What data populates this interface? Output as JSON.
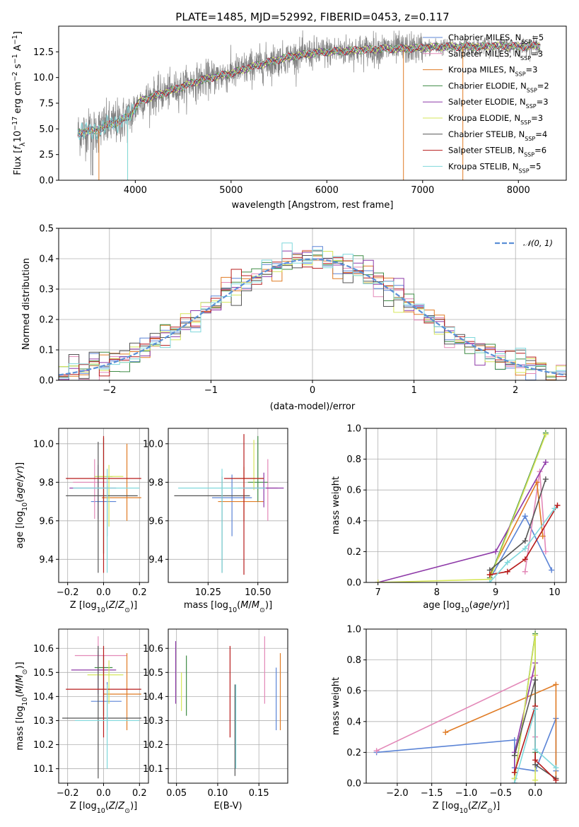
{
  "colors": {
    "Chabrier MILES": "#5b84d6",
    "Salpeter MILES": "#e388b8",
    "Kroupa MILES": "#e07b24",
    "Chabrier ELODIE": "#3f8b45",
    "Salpeter ELODIE": "#8e3aa8",
    "Kroupa ELODIE": "#d6e65a",
    "Chabrier STELIB": "#555555",
    "Salpeter STELIB": "#b71c1c",
    "Kroupa STELIB": "#7fd8dc",
    "data": "#808080",
    "normal": "#5b8fd6"
  },
  "chart_data": [
    {
      "id": "spectrum",
      "type": "line",
      "title": "PLATE=1485, MJD=52992, FIBERID=0453, z=0.117",
      "xlabel": "wavelength [Angstrom, rest frame]",
      "ylabel": "Flux [f_λ10^-17 erg cm^-2 s^-1 A^-1]",
      "xlim": [
        3200,
        8500
      ],
      "ylim": [
        0,
        15
      ],
      "xticks": [
        4000,
        5000,
        6000,
        7000,
        8000
      ],
      "yticks": [
        0.0,
        2.5,
        5.0,
        7.5,
        10.0,
        12.5
      ],
      "legend_position": "upper right",
      "legend": [
        {
          "model": "Chabrier MILES",
          "label": "Chabrier MILES, N",
          "nssp": "=5"
        },
        {
          "model": "Salpeter MILES",
          "label": "Salpeter MILES, N",
          "nssp": "=3"
        },
        {
          "model": "Kroupa MILES",
          "label": "Kroupa MILES, N",
          "nssp": "=3"
        },
        {
          "model": "Chabrier ELODIE",
          "label": "Chabrier ELODIE, N",
          "nssp": "=2"
        },
        {
          "model": "Salpeter ELODIE",
          "label": "Salpeter ELODIE, N",
          "nssp": "=3"
        },
        {
          "model": "Kroupa ELODIE",
          "label": "Kroupa ELODIE, N",
          "nssp": "=3"
        },
        {
          "model": "Chabrier STELIB",
          "label": "Chabrier STELIB, N",
          "nssp": "=4"
        },
        {
          "model": "Salpeter STELIB",
          "label": "Salpeter STELIB, N",
          "nssp": "=6"
        },
        {
          "model": "Kroupa STELIB",
          "label": "Kroupa STELIB, N",
          "nssp": "=5"
        }
      ],
      "nssp_subscript": "SSP",
      "continuum": [
        [
          3400,
          4.6
        ],
        [
          3600,
          4.9
        ],
        [
          3700,
          5.3
        ],
        [
          3800,
          5.6
        ],
        [
          3950,
          6.3
        ],
        [
          4050,
          7.7
        ],
        [
          4200,
          8.2
        ],
        [
          4400,
          8.8
        ],
        [
          4600,
          9.5
        ],
        [
          4800,
          10.0
        ],
        [
          5000,
          10.4
        ],
        [
          5200,
          11.0
        ],
        [
          5400,
          11.5
        ],
        [
          5600,
          12.0
        ],
        [
          5800,
          12.3
        ],
        [
          6000,
          12.5
        ],
        [
          6200,
          12.6
        ],
        [
          6400,
          12.7
        ],
        [
          6600,
          12.8
        ],
        [
          6800,
          12.8
        ],
        [
          7000,
          12.9
        ],
        [
          7200,
          13.0
        ],
        [
          7400,
          13.0
        ],
        [
          7600,
          13.0
        ],
        [
          7800,
          13.1
        ],
        [
          8000,
          13.0
        ],
        [
          8230,
          13.1
        ]
      ]
    },
    {
      "id": "residuals",
      "type": "histogram",
      "xlabel": "(data-model)/error",
      "ylabel": "Normed distribution",
      "xlim": [
        -2.5,
        2.5
      ],
      "ylim": [
        0,
        0.5
      ],
      "xticks": [
        -2,
        -1,
        0,
        1,
        2
      ],
      "yticks": [
        0.0,
        0.1,
        0.2,
        0.3,
        0.4,
        0.5
      ],
      "legend": "𝒩(0, 1)",
      "legend_position": "upper right",
      "bin_width": 0.1
    },
    {
      "id": "age-vs-z",
      "type": "scatter",
      "xlabel": "Z [log10(Z/Z⊙)]",
      "ylabel": "age [log10(age/yr)]",
      "xlim": [
        -0.25,
        0.25
      ],
      "ylim": [
        9.28,
        10.08
      ],
      "xticks": [
        -0.2,
        0.0,
        0.2
      ],
      "yticks": [
        9.4,
        9.6,
        9.8,
        10.0
      ],
      "points": [
        {
          "model": "Chabrier MILES",
          "x": 0.02,
          "xerr": [
            0.09,
            0.05
          ],
          "y": 9.7,
          "yerr": [
            0.18,
            0.08
          ]
        },
        {
          "model": "Salpeter MILES",
          "x": -0.05,
          "xerr": [
            0.12,
            0.08
          ],
          "y": 9.8,
          "yerr": [
            0.19,
            0.12
          ]
        },
        {
          "model": "Kroupa MILES",
          "x": 0.13,
          "xerr": [
            0.14,
            0.08
          ],
          "y": 9.72,
          "yerr": [
            0.12,
            0.28
          ]
        },
        {
          "model": "Chabrier ELODIE",
          "x": 0.0,
          "xerr": [
            0.05,
            0.05
          ],
          "y": 9.83,
          "yerr": [
            0.4,
            0.2
          ]
        },
        {
          "model": "Salpeter ELODIE",
          "x": -0.03,
          "xerr": [
            0.16,
            0.1
          ],
          "y": 9.77,
          "yerr": [
            0.16,
            0.12
          ]
        },
        {
          "model": "Kroupa ELODIE",
          "x": 0.03,
          "xerr": [
            0.08,
            0.08
          ],
          "y": 9.83,
          "yerr": [
            0.26,
            0.06
          ]
        },
        {
          "model": "Chabrier STELIB",
          "x": -0.03,
          "xerr": [
            0.18,
            0.22
          ],
          "y": 9.73,
          "yerr": [
            0.4,
            0.28
          ]
        },
        {
          "model": "Salpeter STELIB",
          "x": 0.0,
          "xerr": [
            0.21,
            0.21
          ],
          "y": 9.82,
          "yerr": [
            0.49,
            0.22
          ]
        },
        {
          "model": "Kroupa STELIB",
          "x": 0.02,
          "xerr": [
            0.19,
            0.18
          ],
          "y": 9.77,
          "yerr": [
            0.44,
            0.1
          ]
        }
      ]
    },
    {
      "id": "age-vs-mass",
      "type": "scatter",
      "xlabel": "mass [log10(M/M⊙)]",
      "ylabel": "",
      "xlim": [
        10.05,
        10.65
      ],
      "ylim": [
        9.28,
        10.08
      ],
      "xticks": [
        10.25,
        10.5
      ],
      "yticks": [
        9.4,
        9.6,
        9.8,
        10.0
      ],
      "points": [
        {
          "model": "Chabrier MILES",
          "x": 10.37,
          "xerr": [
            0.1,
            0.1
          ],
          "y": 9.72,
          "yerr": [
            0.2,
            0.12
          ]
        },
        {
          "model": "Salpeter MILES",
          "x": 10.55,
          "xerr": [
            0.15,
            0.05
          ],
          "y": 9.77,
          "yerr": [
            0.17,
            0.15
          ]
        },
        {
          "model": "Kroupa MILES",
          "x": 10.43,
          "xerr": [
            0.13,
            0.1
          ],
          "y": 9.7,
          "yerr": [
            0.1,
            0.18
          ]
        },
        {
          "model": "Chabrier ELODIE",
          "x": 10.5,
          "xerr": [
            0.05,
            0.05
          ],
          "y": 9.8,
          "yerr": [
            0.1,
            0.24
          ]
        },
        {
          "model": "Salpeter ELODIE",
          "x": 10.53,
          "xerr": [
            0.1,
            0.1
          ],
          "y": 9.77,
          "yerr": [
            0.1,
            0.08
          ]
        },
        {
          "model": "Kroupa ELODIE",
          "x": 10.48,
          "xerr": [
            0.1,
            0.05
          ],
          "y": 9.82,
          "yerr": [
            0.06,
            0.2
          ]
        },
        {
          "model": "Chabrier STELIB",
          "x": 10.32,
          "xerr": [
            0.24,
            0.14
          ],
          "y": 9.73,
          "yerr": [
            0.4,
            0.1
          ]
        },
        {
          "model": "Salpeter STELIB",
          "x": 10.43,
          "xerr": [
            0.1,
            0.1
          ],
          "y": 9.82,
          "yerr": [
            0.5,
            0.23
          ]
        },
        {
          "model": "Kroupa STELIB",
          "x": 10.32,
          "xerr": [
            0.22,
            0.22
          ],
          "y": 9.77,
          "yerr": [
            0.44,
            0.1
          ]
        }
      ]
    },
    {
      "id": "weight-vs-age",
      "type": "line",
      "xlabel": "age [log10(age/yr)]",
      "ylabel": "mass weight",
      "xlim": [
        6.8,
        10.2
      ],
      "ylim": [
        0,
        1
      ],
      "xticks": [
        7,
        8,
        9,
        10
      ],
      "yticks": [
        0.0,
        0.2,
        0.4,
        0.6,
        0.8,
        1.0
      ],
      "series": [
        {
          "model": "Chabrier MILES",
          "x": [
            8.9,
            9.5,
            9.95
          ],
          "y": [
            0.02,
            0.43,
            0.08
          ]
        },
        {
          "model": "Salpeter MILES",
          "x": [
            9.5,
            9.75,
            9.85
          ],
          "y": [
            0.07,
            0.72,
            0.2
          ]
        },
        {
          "model": "Kroupa MILES",
          "x": [
            8.9,
            9.7,
            9.8
          ],
          "y": [
            0.05,
            0.65,
            0.3
          ]
        },
        {
          "model": "Chabrier ELODIE",
          "x": [
            8.9,
            9.85
          ],
          "y": [
            0.03,
            0.97
          ]
        },
        {
          "model": "Salpeter ELODIE",
          "x": [
            7.0,
            9.0,
            9.85
          ],
          "y": [
            0.0,
            0.2,
            0.78
          ]
        },
        {
          "model": "Kroupa ELODIE",
          "x": [
            7.0,
            8.9,
            9.85
          ],
          "y": [
            0.0,
            0.02,
            0.96
          ]
        },
        {
          "model": "Chabrier STELIB",
          "x": [
            8.9,
            9.5,
            9.85
          ],
          "y": [
            0.08,
            0.27,
            0.67
          ]
        },
        {
          "model": "Salpeter STELIB",
          "x": [
            8.9,
            9.2,
            9.5,
            10.05
          ],
          "y": [
            0.05,
            0.07,
            0.15,
            0.5
          ]
        },
        {
          "model": "Kroupa STELIB",
          "x": [
            8.9,
            9.2,
            9.5,
            10.0
          ],
          "y": [
            0.0,
            0.13,
            0.22,
            0.48
          ]
        }
      ]
    },
    {
      "id": "mass-vs-z",
      "type": "scatter",
      "xlabel": "Z [log10(Z/Z⊙)]",
      "ylabel": "mass [log10(M/M⊙)]",
      "xlim": [
        -0.25,
        0.25
      ],
      "ylim": [
        10.04,
        10.68
      ],
      "xticks": [
        -0.2,
        0.0,
        0.2
      ],
      "yticks": [
        10.1,
        10.2,
        10.3,
        10.4,
        10.5,
        10.6
      ],
      "points": [
        {
          "model": "Chabrier MILES",
          "x": 0.02,
          "xerr": [
            0.09,
            0.08
          ],
          "y": 10.38,
          "yerr": [
            0.12,
            0.08
          ]
        },
        {
          "model": "Salpeter MILES",
          "x": -0.03,
          "xerr": [
            0.13,
            0.16
          ],
          "y": 10.57,
          "yerr": [
            0.1,
            0.08
          ]
        },
        {
          "model": "Kroupa MILES",
          "x": 0.13,
          "xerr": [
            0.13,
            0.08
          ],
          "y": 10.41,
          "yerr": [
            0.15,
            0.17
          ]
        },
        {
          "model": "Chabrier ELODIE",
          "x": 0.0,
          "xerr": [
            0.05,
            0.05
          ],
          "y": 10.52,
          "yerr": [
            0.2,
            0.05
          ]
        },
        {
          "model": "Salpeter ELODIE",
          "x": -0.03,
          "xerr": [
            0.15,
            0.1
          ],
          "y": 10.51,
          "yerr": [
            0.1,
            0.08
          ]
        },
        {
          "model": "Kroupa ELODIE",
          "x": 0.03,
          "xerr": [
            0.12,
            0.08
          ],
          "y": 10.49,
          "yerr": [
            0.12,
            0.06
          ]
        },
        {
          "model": "Chabrier STELIB",
          "x": -0.03,
          "xerr": [
            0.2,
            0.24
          ],
          "y": 10.31,
          "yerr": [
            0.25,
            0.3
          ]
        },
        {
          "model": "Salpeter STELIB",
          "x": 0.0,
          "xerr": [
            0.21,
            0.21
          ],
          "y": 10.43,
          "yerr": [
            0.2,
            0.18
          ]
        },
        {
          "model": "Kroupa STELIB",
          "x": 0.02,
          "xerr": [
            0.18,
            0.18
          ],
          "y": 10.3,
          "yerr": [
            0.2,
            0.15
          ]
        }
      ]
    },
    {
      "id": "mass-vs-ebv",
      "type": "scatter",
      "xlabel": "E(B-V)",
      "ylabel": "",
      "xlim": [
        0.04,
        0.185
      ],
      "ylim": [
        10.04,
        10.68
      ],
      "xticks": [
        0.05,
        0.1,
        0.15
      ],
      "yticks": [
        10.1,
        10.2,
        10.3,
        10.4,
        10.5,
        10.6
      ],
      "points": [
        {
          "model": "Chabrier MILES",
          "x": 0.171,
          "y": 10.4,
          "yerr": [
            0.14,
            0.12
          ]
        },
        {
          "model": "Salpeter MILES",
          "x": 0.157,
          "y": 10.57,
          "yerr": [
            0.2,
            0.08
          ]
        },
        {
          "model": "Kroupa MILES",
          "x": 0.176,
          "y": 10.41,
          "yerr": [
            0.15,
            0.17
          ]
        },
        {
          "model": "Chabrier ELODIE",
          "x": 0.062,
          "y": 10.45,
          "yerr": [
            0.13,
            0.12
          ]
        },
        {
          "model": "Salpeter ELODIE",
          "x": 0.049,
          "y": 10.5,
          "yerr": [
            0.13,
            0.13
          ]
        },
        {
          "model": "Kroupa ELODIE",
          "x": 0.056,
          "y": 10.42,
          "yerr": [
            0.08,
            0.08
          ]
        },
        {
          "model": "Chabrier STELIB",
          "x": 0.121,
          "y": 10.25,
          "yerr": [
            0.18,
            0.2
          ]
        },
        {
          "model": "Salpeter STELIB",
          "x": 0.115,
          "y": 10.43,
          "yerr": [
            0.2,
            0.18
          ]
        },
        {
          "model": "Kroupa STELIB",
          "x": 0.122,
          "y": 10.27,
          "yerr": [
            0.17,
            0.18
          ]
        }
      ]
    },
    {
      "id": "weight-vs-z",
      "type": "line",
      "xlabel": "Z [log10(Z/Z⊙)]",
      "ylabel": "mass weight",
      "xlim": [
        -2.45,
        0.45
      ],
      "ylim": [
        0,
        1
      ],
      "xticks": [
        -2.0,
        -1.5,
        -1.0,
        -0.5,
        0.0
      ],
      "yticks": [
        0.0,
        0.2,
        0.4,
        0.6,
        0.8,
        1.0
      ],
      "series": [
        {
          "model": "Chabrier MILES",
          "x": [
            -2.3,
            -0.3,
            -0.3,
            0.0,
            0.3,
            0.3
          ],
          "y": [
            0.2,
            0.28,
            0.1,
            0.08,
            0.42,
            0.08
          ]
        },
        {
          "model": "Salpeter MILES",
          "x": [
            -2.3,
            0.0,
            0.0
          ],
          "y": [
            0.21,
            0.7,
            0.3
          ]
        },
        {
          "model": "Kroupa MILES",
          "x": [
            -1.3,
            0.3,
            0.3
          ],
          "y": [
            0.33,
            0.64,
            0.03
          ]
        },
        {
          "model": "Chabrier ELODIE",
          "x": [
            -0.3,
            0.0,
            0.0
          ],
          "y": [
            0.03,
            0.97,
            0.2
          ]
        },
        {
          "model": "Salpeter ELODIE",
          "x": [
            -0.3,
            -0.3,
            0.0
          ],
          "y": [
            0.0,
            0.2,
            0.78
          ]
        },
        {
          "model": "Kroupa ELODIE",
          "x": [
            -0.3,
            0.0,
            0.0
          ],
          "y": [
            0.03,
            0.96,
            0.02
          ]
        },
        {
          "model": "Chabrier STELIB",
          "x": [
            -0.3,
            0.0,
            0.0,
            0.3
          ],
          "y": [
            0.18,
            0.67,
            0.12,
            0.03
          ]
        },
        {
          "model": "Salpeter STELIB",
          "x": [
            -0.3,
            0.0,
            0.0,
            0.3
          ],
          "y": [
            0.07,
            0.5,
            0.15,
            0.02
          ]
        },
        {
          "model": "Kroupa STELIB",
          "x": [
            -0.3,
            0.0,
            0.0,
            0.3
          ],
          "y": [
            0.0,
            0.48,
            0.22,
            0.1
          ]
        }
      ]
    }
  ]
}
